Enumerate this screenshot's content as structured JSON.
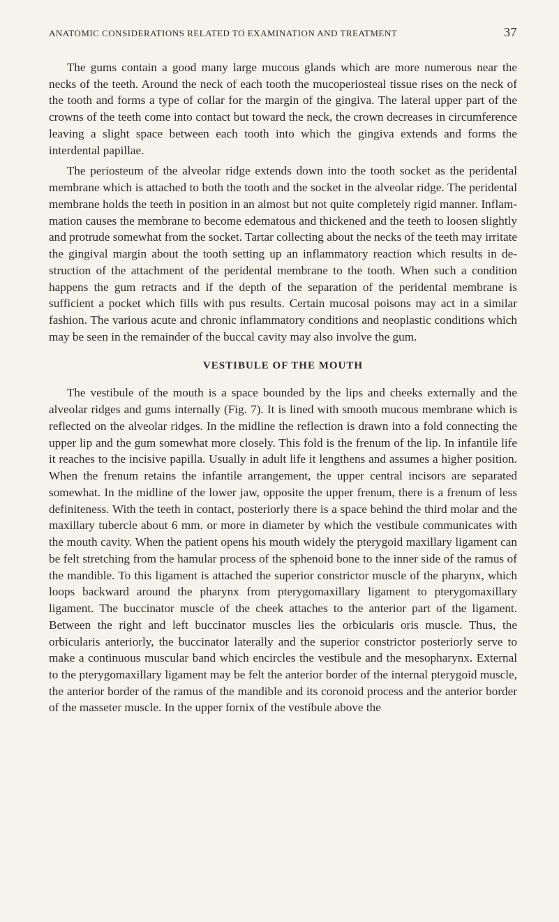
{
  "running_head": {
    "title": "ANATOMIC CONSIDERATIONS RELATED TO EXAMINATION AND TREATMENT",
    "pagenum": "37"
  },
  "paragraph1": "The gums contain a good many large mucous glands which are more numer­ous near the necks of the teeth. Around the neck of each tooth the muco­periosteal tissue rises on the neck of the tooth and forms a type of collar for the margin of the gingiva. The lateral upper part of the crowns of the teeth come into contact but toward the neck, the crown decreases in circumference leaving a slight space between each tooth into which the gingiva extends and forms the interdental papillae.",
  "paragraph2": "The periosteum of the alveolar ridge extends down into the tooth socket as the peridental membrane which is attached to both the tooth and the socket in the alveolar ridge. The peridental membrane holds the teeth in position in an almost but not quite completely rigid manner. Inflam­mation causes the membrane to become edematous and thickened and the teeth to loosen slightly and protrude somewhat from the socket. Tartar collecting about the necks of the teeth may irritate the gingival margin about the tooth setting up an inflammatory reaction which results in de­struction of the attachment of the peridental membrane to the tooth. When such a condition happens the gum retracts and if the depth of the separation of the peridental membrane is sufficient a pocket which fills with pus results. Certain mucosal poisons may act in a similar fashion. The various acute and chronic inflammatory conditions and neoplastic con­ditions which may be seen in the remainder of the buccal cavity may also involve the gum.",
  "section_heading": "VESTIBULE OF THE MOUTH",
  "paragraph3": "The vestibule of the mouth is a space bounded by the lips and cheeks externally and the alveolar ridges and gums internally (Fig. 7). It is lined with smooth mucous membrane which is reflected on the alveolar ridges. In the midline the reflection is drawn into a fold connecting the upper lip and the gum somewhat more closely. This fold is the frenum of the lip. In infantile life it reaches to the incisive papilla. Usually in adult life it lengthens and assumes a higher position. When the frenum retains the infantile arrangement, the upper central incisors are separated somewhat. In the midline of the lower jaw, opposite the upper frenum, there is a frenum of less definiteness. With the teeth in contact, pos­teriorly there is a space behind the third molar and the maxillary tubercle about 6 mm. or more in diameter by which the vestibule communicates with the mouth cavity. When the patient opens his mouth widely the pterygoid maxillary ligament can be felt stretching from the hamular process of the sphenoid bone to the inner side of the ramus of the mandible. To this ligament is attached the superior constrictor muscle of the pharynx, which loops backward around the pharynx from pterygomaxillary ligament to pterygomaxillary ligament. The buccinator muscle of the cheek attaches to the anterior part of the ligament. Between the right and left buc­cinator muscles lies the orbicularis oris muscle. Thus, the orbicularis an­teriorly, the buccinator laterally and the superior constrictor posteriorly serve to make a continuous muscular band which encircles the vestibule and the mesopharynx. External to the pterygomaxillary ligament may be felt the anterior border of the internal pterygoid muscle, the anterior border of the ramus of the mandible and its coronoid process and the anterior border of the masseter muscle. In the upper fornix of the vestibule above the"
}
